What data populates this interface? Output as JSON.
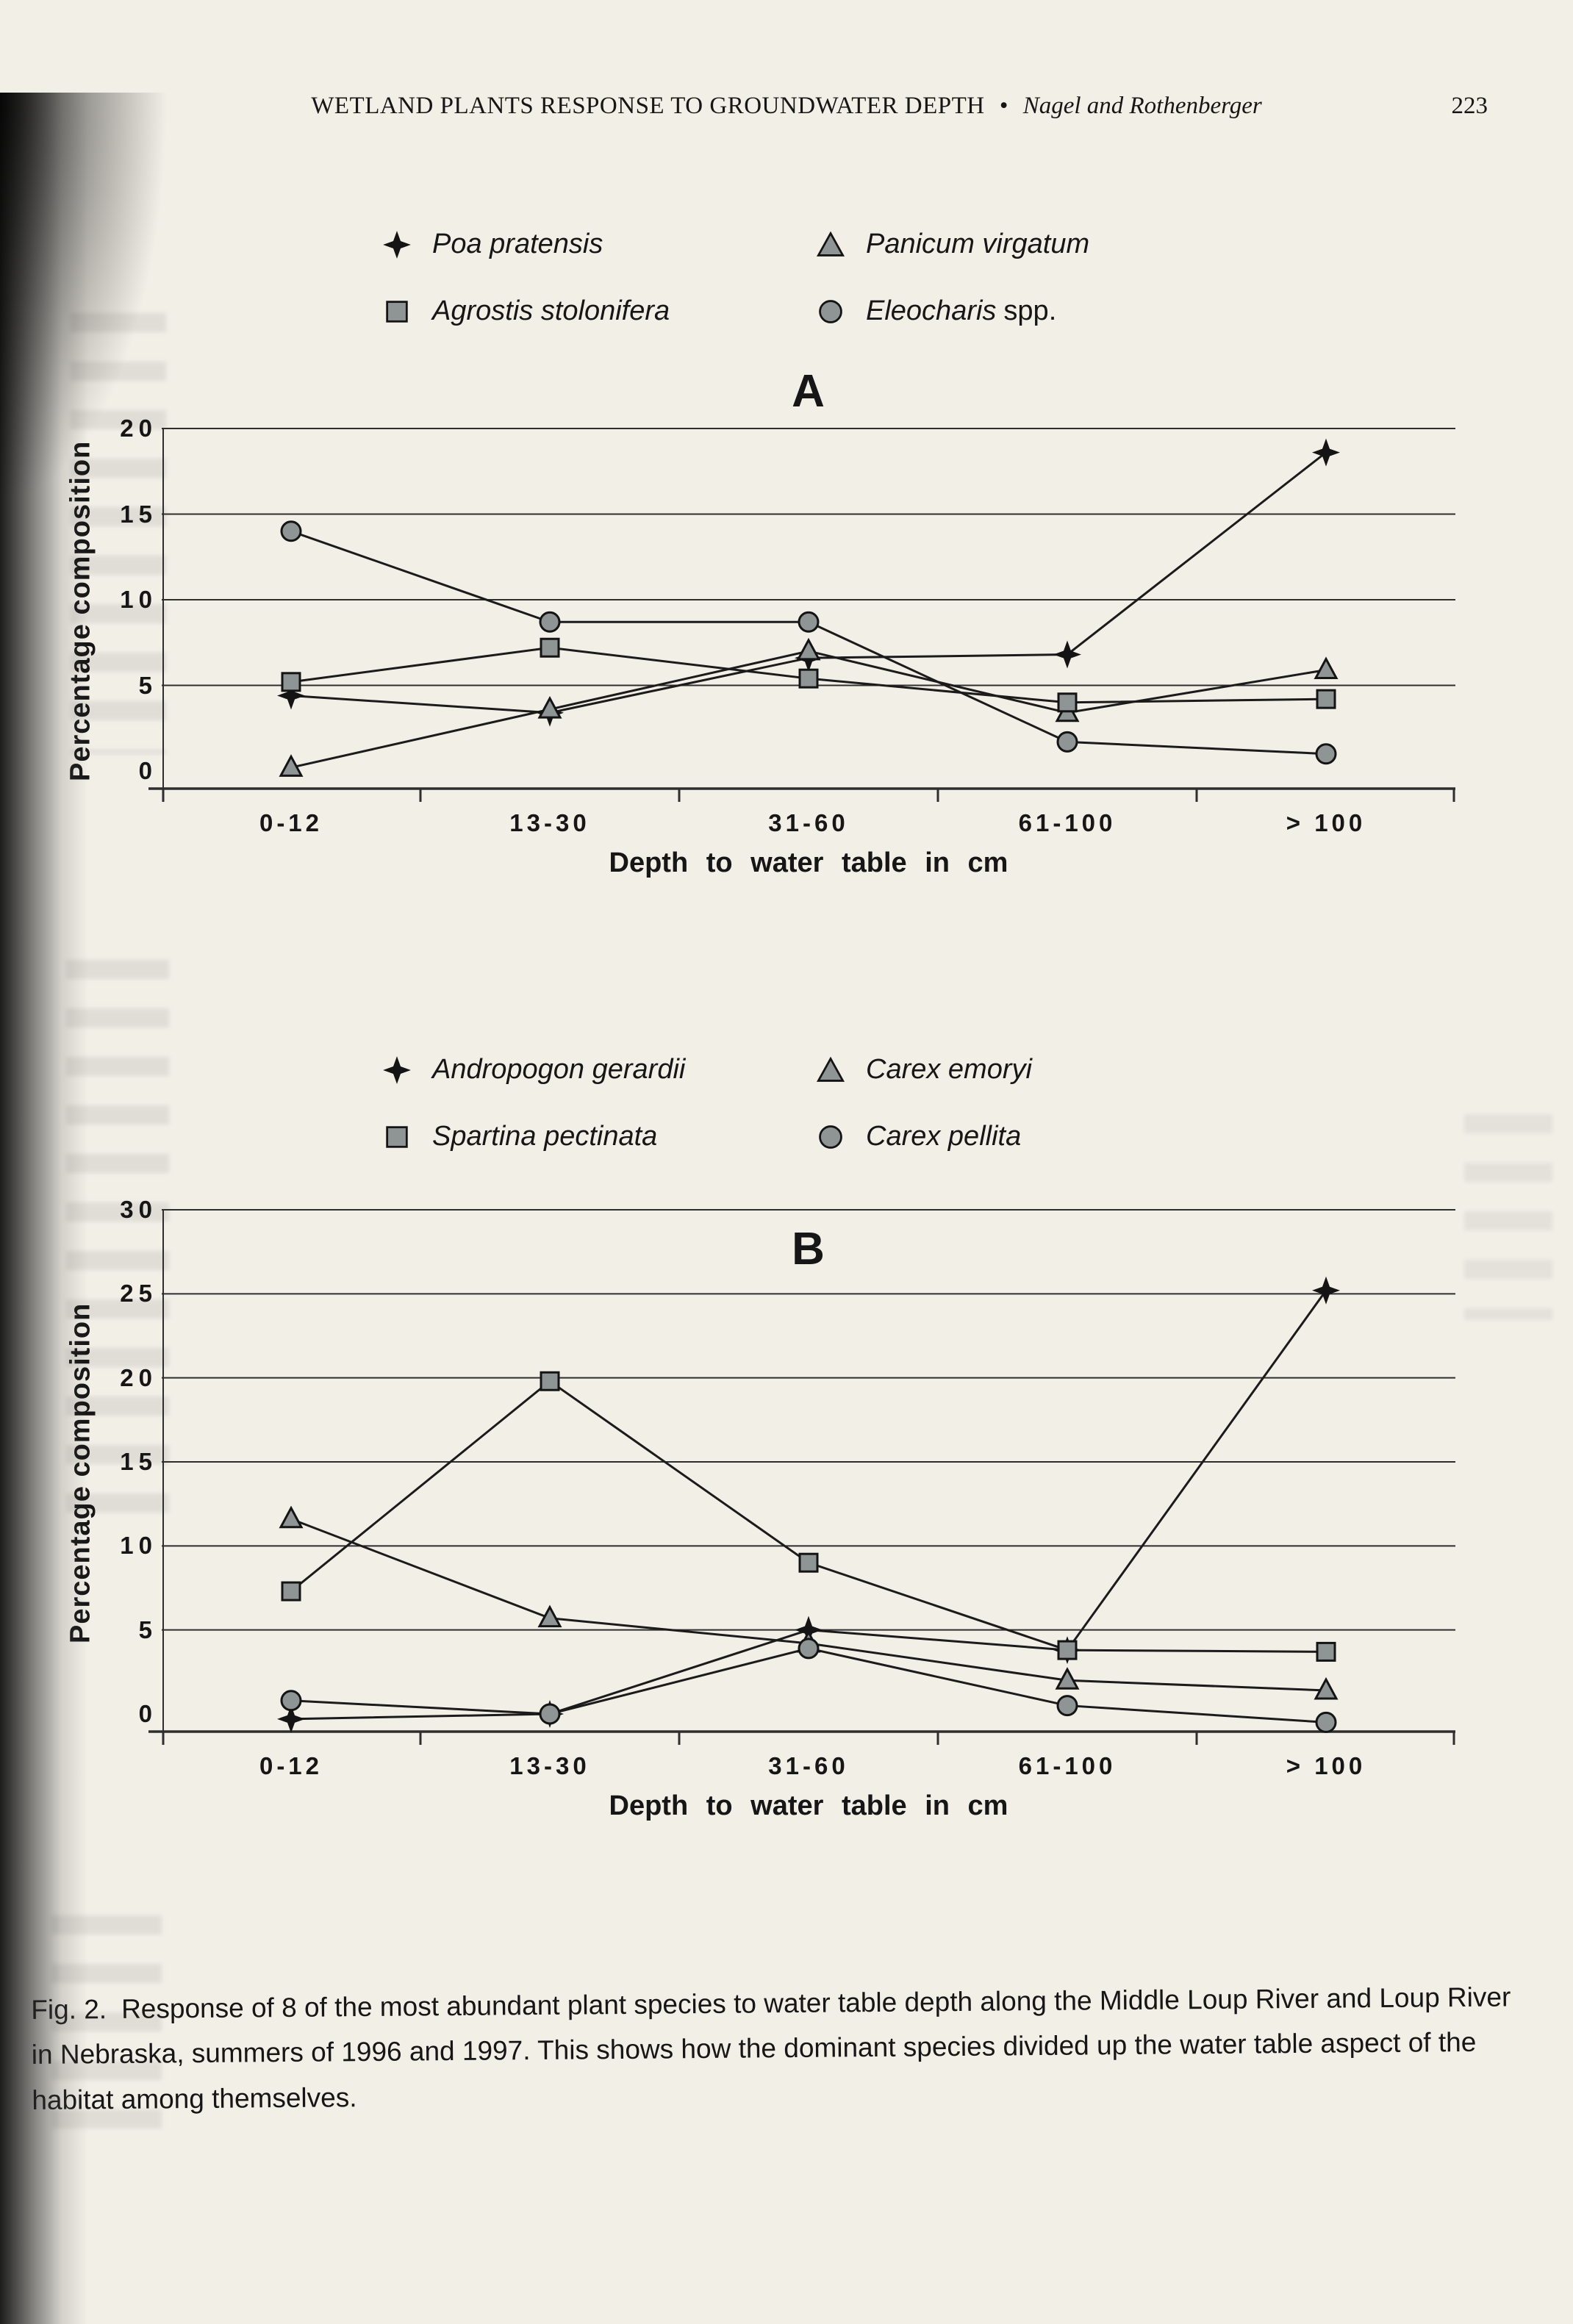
{
  "header": {
    "title": "WETLAND PLANTS RESPONSE TO GROUNDWATER DEPTH",
    "bullet": "•",
    "authors": "Nagel and Rothenberger",
    "page_number": "223"
  },
  "colors": {
    "paper": "#f2efe7",
    "ink": "#161616",
    "line": "#1b1b1b",
    "grid": "#2e2e2e",
    "marker_fill": "#8f9494",
    "marker_stroke": "#141414"
  },
  "chart_data": [
    {
      "type": "line",
      "panel_label": "A",
      "categories": [
        "0-12",
        "13-30",
        "31-60",
        "61-100",
        "> 100"
      ],
      "xlabel": "Depth to water table in cm",
      "ylabel": "Percentage composition",
      "ylim": [
        0,
        20
      ],
      "yticks": [
        0,
        5,
        10,
        15,
        20
      ],
      "grid": "horizontal",
      "legend_position": "top",
      "series": [
        {
          "name": "Poa pratensis",
          "legend_italic": "Poa pratensis",
          "legend_roman": "",
          "marker": "star4",
          "values": [
            4.4,
            3.4,
            6.6,
            6.8,
            18.6
          ]
        },
        {
          "name": "Panicum virgatum",
          "legend_italic": "Panicum virgatum",
          "legend_roman": "",
          "marker": "triangle",
          "values": [
            0.2,
            3.6,
            7.0,
            3.4,
            5.9
          ]
        },
        {
          "name": "Agrostis stolonifera",
          "legend_italic": "Agrostis stolonifera",
          "legend_roman": "",
          "marker": "square",
          "values": [
            5.2,
            7.2,
            5.4,
            4.0,
            4.2
          ]
        },
        {
          "name": "Eleocharis spp.",
          "legend_italic": "Eleocharis",
          "legend_roman": "spp.",
          "marker": "circle",
          "values": [
            14.0,
            8.7,
            8.7,
            1.7,
            1.0
          ]
        }
      ]
    },
    {
      "type": "line",
      "panel_label": "B",
      "categories": [
        "0-12",
        "13-30",
        "31-60",
        "61-100",
        "> 100"
      ],
      "xlabel": "Depth to water table in cm",
      "ylabel": "Percentage composition",
      "ylim": [
        0,
        30
      ],
      "yticks": [
        0,
        5,
        10,
        15,
        20,
        25,
        30
      ],
      "grid": "horizontal",
      "legend_position": "top",
      "series": [
        {
          "name": "Andropogon gerardii",
          "legend_italic": "Andropogon gerardii",
          "legend_roman": "",
          "marker": "star4",
          "values": [
            -0.3,
            0.0,
            5.0,
            3.8,
            25.2
          ]
        },
        {
          "name": "Carex emoryi",
          "legend_italic": "Carex emoryi",
          "legend_roman": "",
          "marker": "triangle",
          "values": [
            11.6,
            5.7,
            4.2,
            2.0,
            1.4
          ]
        },
        {
          "name": "Spartina pectinata",
          "legend_italic": "Spartina pectinata",
          "legend_roman": "",
          "marker": "square",
          "values": [
            7.3,
            19.8,
            9.0,
            3.8,
            3.7
          ]
        },
        {
          "name": "Carex pellita",
          "legend_italic": "Carex pellita",
          "legend_roman": "",
          "marker": "circle",
          "values": [
            0.8,
            0.0,
            3.9,
            0.5,
            -0.5
          ]
        }
      ]
    }
  ],
  "caption": {
    "label": "Fig. 2.",
    "text": "Response of 8 of the most abundant plant species to water table depth along the Middle Loup River and Loup River in Nebraska, summers of 1996 and 1997.  This shows how the dominant species divided up the water table aspect of the habitat among themselves."
  }
}
